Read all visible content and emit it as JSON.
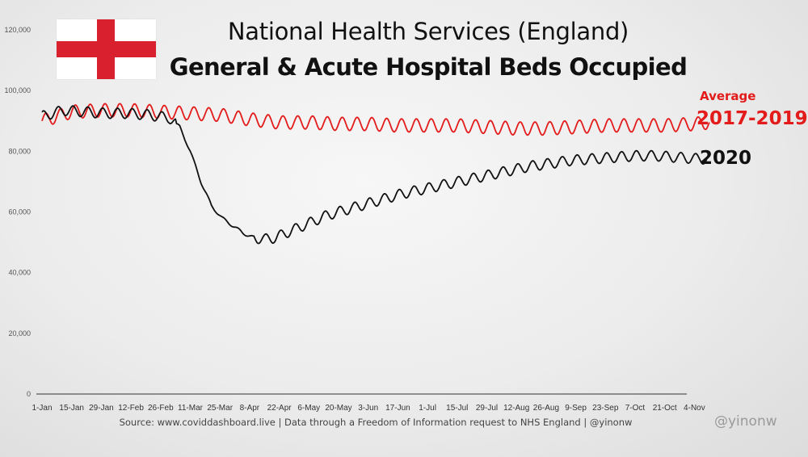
{
  "colors": {
    "average": "#e31b1b",
    "year2020": "#111111",
    "flag_red": "#d8202e"
  },
  "flag": {
    "icon": "england-flag-icon"
  },
  "chart_data": {
    "type": "line",
    "title": "National Health Services (England)",
    "subtitle": "General & Acute Hospital Beds Occupied",
    "xlabel": "",
    "ylabel": "",
    "ylim": [
      0,
      120000
    ],
    "yticks": [
      0,
      20000,
      40000,
      60000,
      80000,
      100000,
      120000
    ],
    "ytick_labels": [
      "0",
      "20,000",
      "40,000",
      "60,000",
      "80,000",
      "100,000",
      "120,000"
    ],
    "xtick_labels": [
      "1-Jan",
      "15-Jan",
      "29-Jan",
      "12-Feb",
      "26-Feb",
      "11-Mar",
      "25-Mar",
      "8-Apr",
      "22-Apr",
      "6-May",
      "20-May",
      "3-Jun",
      "17-Jun",
      "1-Jul",
      "15-Jul",
      "29-Jul",
      "12-Aug",
      "26-Aug",
      "9-Sep",
      "23-Sep",
      "7-Oct",
      "21-Oct",
      "4-Nov"
    ],
    "x_unit": "days since 1-Jan",
    "grid": false,
    "legend": "right",
    "series": [
      {
        "name": "2017-2019",
        "label_top": "Average",
        "label_bottom": "2017-2019",
        "x": [
          0,
          14,
          28,
          42,
          56,
          70,
          84,
          98,
          112,
          126,
          140,
          154,
          168,
          182,
          196,
          210,
          224,
          238,
          252,
          266,
          280,
          294,
          308,
          315
        ],
        "values": [
          90000,
          93000,
          93500,
          93500,
          93000,
          92500,
          92000,
          90500,
          89500,
          89500,
          89000,
          89000,
          88500,
          88500,
          88500,
          88000,
          87500,
          87500,
          88000,
          88500,
          88500,
          88500,
          89000,
          89500
        ]
      },
      {
        "name": "2020",
        "label": "2020",
        "x": [
          0,
          10,
          20,
          30,
          40,
          50,
          60,
          65,
          70,
          75,
          80,
          85,
          90,
          95,
          100,
          105,
          110,
          115,
          120,
          125,
          130,
          135,
          140,
          150,
          160,
          170,
          180,
          190,
          200,
          210,
          220,
          230,
          240,
          250,
          260,
          270,
          280,
          290,
          300,
          310,
          315
        ],
        "values": [
          91500,
          93500,
          93000,
          92500,
          92500,
          92000,
          91000,
          88000,
          80000,
          70000,
          62000,
          58000,
          55500,
          53000,
          51500,
          51000,
          51500,
          53000,
          54500,
          56000,
          57500,
          59000,
          60000,
          62000,
          64000,
          66000,
          67500,
          69000,
          70500,
          72000,
          73500,
          75000,
          76000,
          77000,
          77500,
          78000,
          78500,
          78500,
          78000,
          77500,
          77500
        ]
      }
    ]
  },
  "footer": {
    "source": "Source: www.coviddashboard.live | Data through a Freedom of Information request to NHS England | @yinonw",
    "handle": "@yinonw"
  }
}
